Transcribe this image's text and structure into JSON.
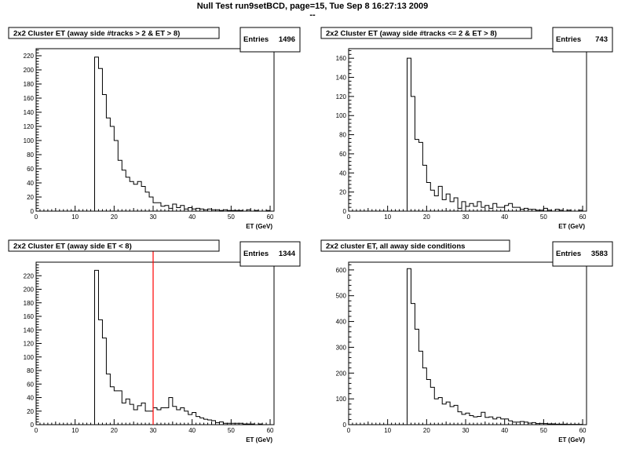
{
  "page": {
    "title": "Null Test run9setBCD, page=15,  Tue Sep  8 16:27:13 2009",
    "subtitle": "--"
  },
  "chart_data": [
    {
      "type": "histogram",
      "title": "2x2 Cluster ET (away side #tracks > 2 & ET > 8)",
      "xlabel": "ET (GeV)",
      "ylabel": "",
      "stats": {
        "label": "Entries",
        "value": "1496"
      },
      "xlim": [
        0,
        61
      ],
      "ylim": [
        0,
        230
      ],
      "xticks": [
        0,
        10,
        20,
        30,
        40,
        50,
        60
      ],
      "yticks": [
        0,
        20,
        40,
        60,
        80,
        100,
        120,
        140,
        160,
        180,
        200,
        220
      ],
      "bin_start": 15,
      "bin_width": 1,
      "values": [
        218,
        202,
        165,
        132,
        120,
        100,
        72,
        58,
        48,
        42,
        38,
        42,
        35,
        27,
        20,
        12,
        12,
        7,
        8,
        4,
        10,
        5,
        8,
        3,
        5,
        3,
        4,
        3,
        2,
        3,
        2,
        2,
        1,
        2,
        1,
        1,
        1,
        1,
        0,
        2,
        0,
        1,
        0,
        0,
        1,
        0
      ]
    },
    {
      "type": "histogram",
      "title": "2x2 Cluster ET (away side #tracks <= 2 & ET > 8)",
      "xlabel": "ET (GeV)",
      "ylabel": "",
      "stats": {
        "label": "Entries",
        "value": "743"
      },
      "xlim": [
        0,
        61
      ],
      "ylim": [
        0,
        170
      ],
      "xticks": [
        0,
        10,
        20,
        30,
        40,
        50,
        60
      ],
      "yticks": [
        0,
        20,
        40,
        60,
        80,
        100,
        120,
        140,
        160
      ],
      "bin_start": 15,
      "bin_width": 1,
      "values": [
        160,
        120,
        75,
        72,
        48,
        30,
        22,
        16,
        26,
        12,
        18,
        10,
        14,
        3,
        10,
        5,
        8,
        5,
        10,
        4,
        6,
        3,
        8,
        4,
        4,
        6,
        8,
        4,
        4,
        2,
        3,
        2,
        2,
        1,
        1,
        3,
        1,
        0,
        2,
        1,
        0,
        1,
        0,
        0,
        1,
        0
      ]
    },
    {
      "type": "histogram",
      "title": "2x2 Cluster ET (away side ET < 8)",
      "xlabel": "ET (GeV)",
      "ylabel": "",
      "stats": {
        "label": "Entries",
        "value": "1344"
      },
      "xlim": [
        0,
        61
      ],
      "ylim": [
        0,
        240
      ],
      "xticks": [
        0,
        10,
        20,
        30,
        40,
        50,
        60
      ],
      "yticks": [
        0,
        20,
        40,
        60,
        80,
        100,
        120,
        140,
        160,
        180,
        200,
        220
      ],
      "bin_start": 15,
      "bin_width": 1,
      "cut_line_x": 30,
      "values": [
        228,
        155,
        128,
        75,
        56,
        50,
        50,
        32,
        38,
        30,
        22,
        28,
        32,
        20,
        20,
        25,
        22,
        25,
        25,
        40,
        27,
        22,
        25,
        20,
        15,
        18,
        12,
        10,
        8,
        7,
        6,
        3,
        4,
        2,
        2,
        2,
        2,
        2,
        1,
        1,
        1,
        0,
        1,
        0,
        0,
        0
      ]
    },
    {
      "type": "histogram",
      "title": "2x2 cluster ET, all away side conditions",
      "xlabel": "ET (GeV)",
      "ylabel": "",
      "stats": {
        "label": "Entries",
        "value": "3583"
      },
      "xlim": [
        0,
        61
      ],
      "ylim": [
        0,
        630
      ],
      "xticks": [
        0,
        10,
        20,
        30,
        40,
        50,
        60
      ],
      "yticks": [
        0,
        100,
        200,
        300,
        400,
        500,
        600
      ],
      "bin_start": 15,
      "bin_width": 1,
      "values": [
        605,
        470,
        370,
        285,
        220,
        175,
        145,
        100,
        105,
        80,
        88,
        70,
        75,
        50,
        40,
        45,
        35,
        30,
        32,
        48,
        28,
        30,
        22,
        28,
        22,
        22,
        15,
        10,
        10,
        12,
        10,
        6,
        8,
        4,
        5,
        4,
        3,
        3,
        2,
        2,
        2,
        1,
        1,
        1,
        1,
        0
      ]
    }
  ]
}
